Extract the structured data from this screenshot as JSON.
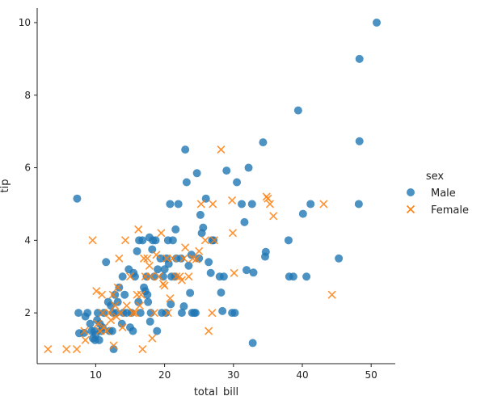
{
  "chart_data": {
    "type": "scatter",
    "xlabel": "total_bill",
    "ylabel": "tip",
    "xlim": [
      1.5,
      53.5
    ],
    "ylim": [
      0.6,
      10.4
    ],
    "xticks": [
      10,
      20,
      30,
      40,
      50
    ],
    "yticks": [
      2,
      4,
      6,
      8,
      10
    ],
    "grid": false,
    "legend": {
      "title": "sex",
      "placement": "right"
    },
    "series": [
      {
        "name": "Male",
        "marker": "circle",
        "color": "#1f77b4",
        "points": [
          [
            7.3,
            5.15
          ],
          [
            7.5,
            2.0
          ],
          [
            7.6,
            1.44
          ],
          [
            8.3,
            1.45
          ],
          [
            8.5,
            1.9
          ],
          [
            8.8,
            2.0
          ],
          [
            9.2,
            1.7
          ],
          [
            9.4,
            1.5
          ],
          [
            9.6,
            1.3
          ],
          [
            9.8,
            1.5
          ],
          [
            9.9,
            1.25
          ],
          [
            10.0,
            1.4
          ],
          [
            10.2,
            1.8
          ],
          [
            10.3,
            2.0
          ],
          [
            10.5,
            1.25
          ],
          [
            10.6,
            1.7
          ],
          [
            10.8,
            1.5
          ],
          [
            11.0,
            1.6
          ],
          [
            11.2,
            2.0
          ],
          [
            11.5,
            3.4
          ],
          [
            11.8,
            2.3
          ],
          [
            12.0,
            1.5
          ],
          [
            12.2,
            2.2
          ],
          [
            12.4,
            1.5
          ],
          [
            12.5,
            2.0
          ],
          [
            12.6,
            1.0
          ],
          [
            12.8,
            2.5
          ],
          [
            13.0,
            2.0
          ],
          [
            13.2,
            2.3
          ],
          [
            13.4,
            2.7
          ],
          [
            13.8,
            1.7
          ],
          [
            13.9,
            3.0
          ],
          [
            14.0,
            2.0
          ],
          [
            14.2,
            2.5
          ],
          [
            14.5,
            2.0
          ],
          [
            14.8,
            3.2
          ],
          [
            15.0,
            1.6
          ],
          [
            15.2,
            2.0
          ],
          [
            15.4,
            1.5
          ],
          [
            15.5,
            3.1
          ],
          [
            15.7,
            3.0
          ],
          [
            16.0,
            3.7
          ],
          [
            16.2,
            2.3
          ],
          [
            16.3,
            4.0
          ],
          [
            16.5,
            2.0
          ],
          [
            16.8,
            4.0
          ],
          [
            17.0,
            2.7
          ],
          [
            17.2,
            2.6
          ],
          [
            17.4,
            3.0
          ],
          [
            17.5,
            2.5
          ],
          [
            17.6,
            2.3
          ],
          [
            17.8,
            4.08
          ],
          [
            17.9,
            1.76
          ],
          [
            18.0,
            2.0
          ],
          [
            18.2,
            3.75
          ],
          [
            18.3,
            4.0
          ],
          [
            18.5,
            3.0
          ],
          [
            18.7,
            4.0
          ],
          [
            18.9,
            1.5
          ],
          [
            19.0,
            3.2
          ],
          [
            19.4,
            3.5
          ],
          [
            19.6,
            2.0
          ],
          [
            19.8,
            3.0
          ],
          [
            20.0,
            3.2
          ],
          [
            20.2,
            2.0
          ],
          [
            20.3,
            3.5
          ],
          [
            20.5,
            4.0
          ],
          [
            20.6,
            3.35
          ],
          [
            20.8,
            5.0
          ],
          [
            20.9,
            2.24
          ],
          [
            21.0,
            3.0
          ],
          [
            21.2,
            4.0
          ],
          [
            21.5,
            3.0
          ],
          [
            21.6,
            4.3
          ],
          [
            21.7,
            3.5
          ],
          [
            22.0,
            5.0
          ],
          [
            22.4,
            3.5
          ],
          [
            22.5,
            2.0
          ],
          [
            22.8,
            2.18
          ],
          [
            23.0,
            6.5
          ],
          [
            23.2,
            5.6
          ],
          [
            23.5,
            3.3
          ],
          [
            23.7,
            2.55
          ],
          [
            23.9,
            3.6
          ],
          [
            24.0,
            2.0
          ],
          [
            24.3,
            2.0
          ],
          [
            24.5,
            2.0
          ],
          [
            24.7,
            5.85
          ],
          [
            25.0,
            3.5
          ],
          [
            25.2,
            4.7
          ],
          [
            25.4,
            4.2
          ],
          [
            25.6,
            4.35
          ],
          [
            26.0,
            5.15
          ],
          [
            26.4,
            3.4
          ],
          [
            26.7,
            3.1
          ],
          [
            26.9,
            4.0
          ],
          [
            27.1,
            4.0
          ],
          [
            28.0,
            3.0
          ],
          [
            28.2,
            2.56
          ],
          [
            28.4,
            2.05
          ],
          [
            28.6,
            3.0
          ],
          [
            29.0,
            5.92
          ],
          [
            29.8,
            2.0
          ],
          [
            30.2,
            2.0
          ],
          [
            30.5,
            5.6
          ],
          [
            31.2,
            5.0
          ],
          [
            31.6,
            4.5
          ],
          [
            31.9,
            3.18
          ],
          [
            32.2,
            6.0
          ],
          [
            32.7,
            5.0
          ],
          [
            32.8,
            1.17
          ],
          [
            32.9,
            3.11
          ],
          [
            34.3,
            6.7
          ],
          [
            34.6,
            3.55
          ],
          [
            34.7,
            3.68
          ],
          [
            38.0,
            4.0
          ],
          [
            38.1,
            3.0
          ],
          [
            38.7,
            3.0
          ],
          [
            39.4,
            7.58
          ],
          [
            40.1,
            4.73
          ],
          [
            40.6,
            3.0
          ],
          [
            41.2,
            5.0
          ],
          [
            45.3,
            3.5
          ],
          [
            48.2,
            5.0
          ],
          [
            48.3,
            6.73
          ],
          [
            48.3,
            9.0
          ],
          [
            50.8,
            10.0
          ]
        ]
      },
      {
        "name": "Female",
        "marker": "x",
        "color": "#ff7f0e",
        "points": [
          [
            3.07,
            1.0
          ],
          [
            5.75,
            1.0
          ],
          [
            7.25,
            1.0
          ],
          [
            8.35,
            1.5
          ],
          [
            8.5,
            1.25
          ],
          [
            9.55,
            4.0
          ],
          [
            10.1,
            2.6
          ],
          [
            10.3,
            1.7
          ],
          [
            10.6,
            1.5
          ],
          [
            10.9,
            2.5
          ],
          [
            11.0,
            2.0
          ],
          [
            11.2,
            1.6
          ],
          [
            11.6,
            1.5
          ],
          [
            12.0,
            2.0
          ],
          [
            12.2,
            1.8
          ],
          [
            12.5,
            2.5
          ],
          [
            12.6,
            1.1
          ],
          [
            12.8,
            2.2
          ],
          [
            13.0,
            1.9
          ],
          [
            13.2,
            2.7
          ],
          [
            13.4,
            3.5
          ],
          [
            13.6,
            2.0
          ],
          [
            13.9,
            1.6
          ],
          [
            14.3,
            4.0
          ],
          [
            14.5,
            2.2
          ],
          [
            15.0,
            3.0
          ],
          [
            15.4,
            2.0
          ],
          [
            15.7,
            2.0
          ],
          [
            16.0,
            2.5
          ],
          [
            16.2,
            4.3
          ],
          [
            16.4,
            2.2
          ],
          [
            16.6,
            2.5
          ],
          [
            16.8,
            1.0
          ],
          [
            17.0,
            3.5
          ],
          [
            17.2,
            3.0
          ],
          [
            17.5,
            3.5
          ],
          [
            17.8,
            3.3
          ],
          [
            18.0,
            3.0
          ],
          [
            18.2,
            1.3
          ],
          [
            18.5,
            2.0
          ],
          [
            18.8,
            3.6
          ],
          [
            19.2,
            3.0
          ],
          [
            19.5,
            4.2
          ],
          [
            19.8,
            2.8
          ],
          [
            20.0,
            2.75
          ],
          [
            20.3,
            3.5
          ],
          [
            20.5,
            2.0
          ],
          [
            20.8,
            2.4
          ],
          [
            21.2,
            3.5
          ],
          [
            21.7,
            3.0
          ],
          [
            22.2,
            3.0
          ],
          [
            22.5,
            2.9
          ],
          [
            22.8,
            3.5
          ],
          [
            23.0,
            3.8
          ],
          [
            23.5,
            3.0
          ],
          [
            24.1,
            3.5
          ],
          [
            24.6,
            3.48
          ],
          [
            25.0,
            3.7
          ],
          [
            25.3,
            5.0
          ],
          [
            25.9,
            4.0
          ],
          [
            26.4,
            1.5
          ],
          [
            26.9,
            2.0
          ],
          [
            27.0,
            5.0
          ],
          [
            27.2,
            4.0
          ],
          [
            28.2,
            6.5
          ],
          [
            29.9,
            4.2
          ],
          [
            29.8,
            5.1
          ],
          [
            30.1,
            3.1
          ],
          [
            34.8,
            5.2
          ],
          [
            35.0,
            5.15
          ],
          [
            35.3,
            5.0
          ],
          [
            35.8,
            4.67
          ],
          [
            43.1,
            5.0
          ],
          [
            44.3,
            2.5
          ]
        ]
      }
    ]
  }
}
